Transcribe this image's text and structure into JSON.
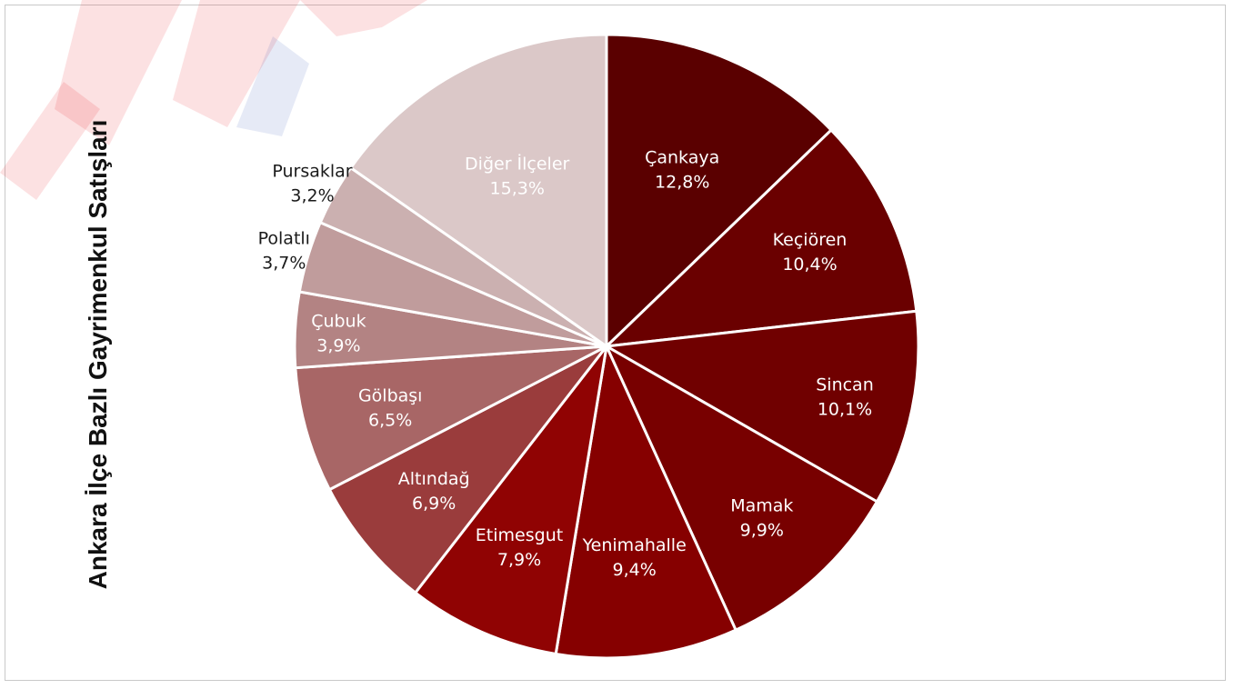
{
  "watermark_text": "REAL",
  "colors": {
    "watermark_red": "#e8141c",
    "watermark_blue": "#3f5fb8",
    "frame_border": "#c9c9c9",
    "slice_border": "#ffffff"
  },
  "chart_data": {
    "type": "pie",
    "title": "",
    "ylabel": "Ankara İlçe Bazlı Gayrimenkul Satışları",
    "start_angle_deg": 0,
    "direction": "clockwise",
    "slices": [
      {
        "label": "Çankaya",
        "value": 12.8,
        "value_label": "12,8%",
        "color": "#5a0000",
        "text_color": "#ffffff"
      },
      {
        "label": "Keçiören",
        "value": 10.4,
        "value_label": "10,4%",
        "color": "#6a0000",
        "text_color": "#ffffff"
      },
      {
        "label": "Sincan",
        "value": 10.1,
        "value_label": "10,1%",
        "color": "#700000",
        "text_color": "#ffffff"
      },
      {
        "label": "Mamak",
        "value": 9.9,
        "value_label": "9,9%",
        "color": "#780000",
        "text_color": "#ffffff"
      },
      {
        "label": "Yenimahalle",
        "value": 9.4,
        "value_label": "9,4%",
        "color": "#860000",
        "text_color": "#ffffff"
      },
      {
        "label": "Etimesgut",
        "value": 7.9,
        "value_label": "7,9%",
        "color": "#900303",
        "text_color": "#ffffff"
      },
      {
        "label": "Altındağ",
        "value": 6.9,
        "value_label": "6,9%",
        "color": "#9a3c3c",
        "text_color": "#ffffff"
      },
      {
        "label": "Gölbaşı",
        "value": 6.5,
        "value_label": "6,5%",
        "color": "#a86666",
        "text_color": "#ffffff"
      },
      {
        "label": "Çubuk",
        "value": 3.9,
        "value_label": "3,9%",
        "color": "#b38383",
        "text_color": "#ffffff"
      },
      {
        "label": "Polatlı",
        "value": 3.7,
        "value_label": "3,7%",
        "color": "#c09c9c",
        "text_color": "#1a1a1a"
      },
      {
        "label": "Pursaklar",
        "value": 3.2,
        "value_label": "3,2%",
        "color": "#cbb0b0",
        "text_color": "#1a1a1a"
      },
      {
        "label": "Diğer İlçeler",
        "value": 15.3,
        "value_label": "15,3%",
        "color": "#dbc8c8",
        "text_color": "#ffffff"
      }
    ]
  }
}
